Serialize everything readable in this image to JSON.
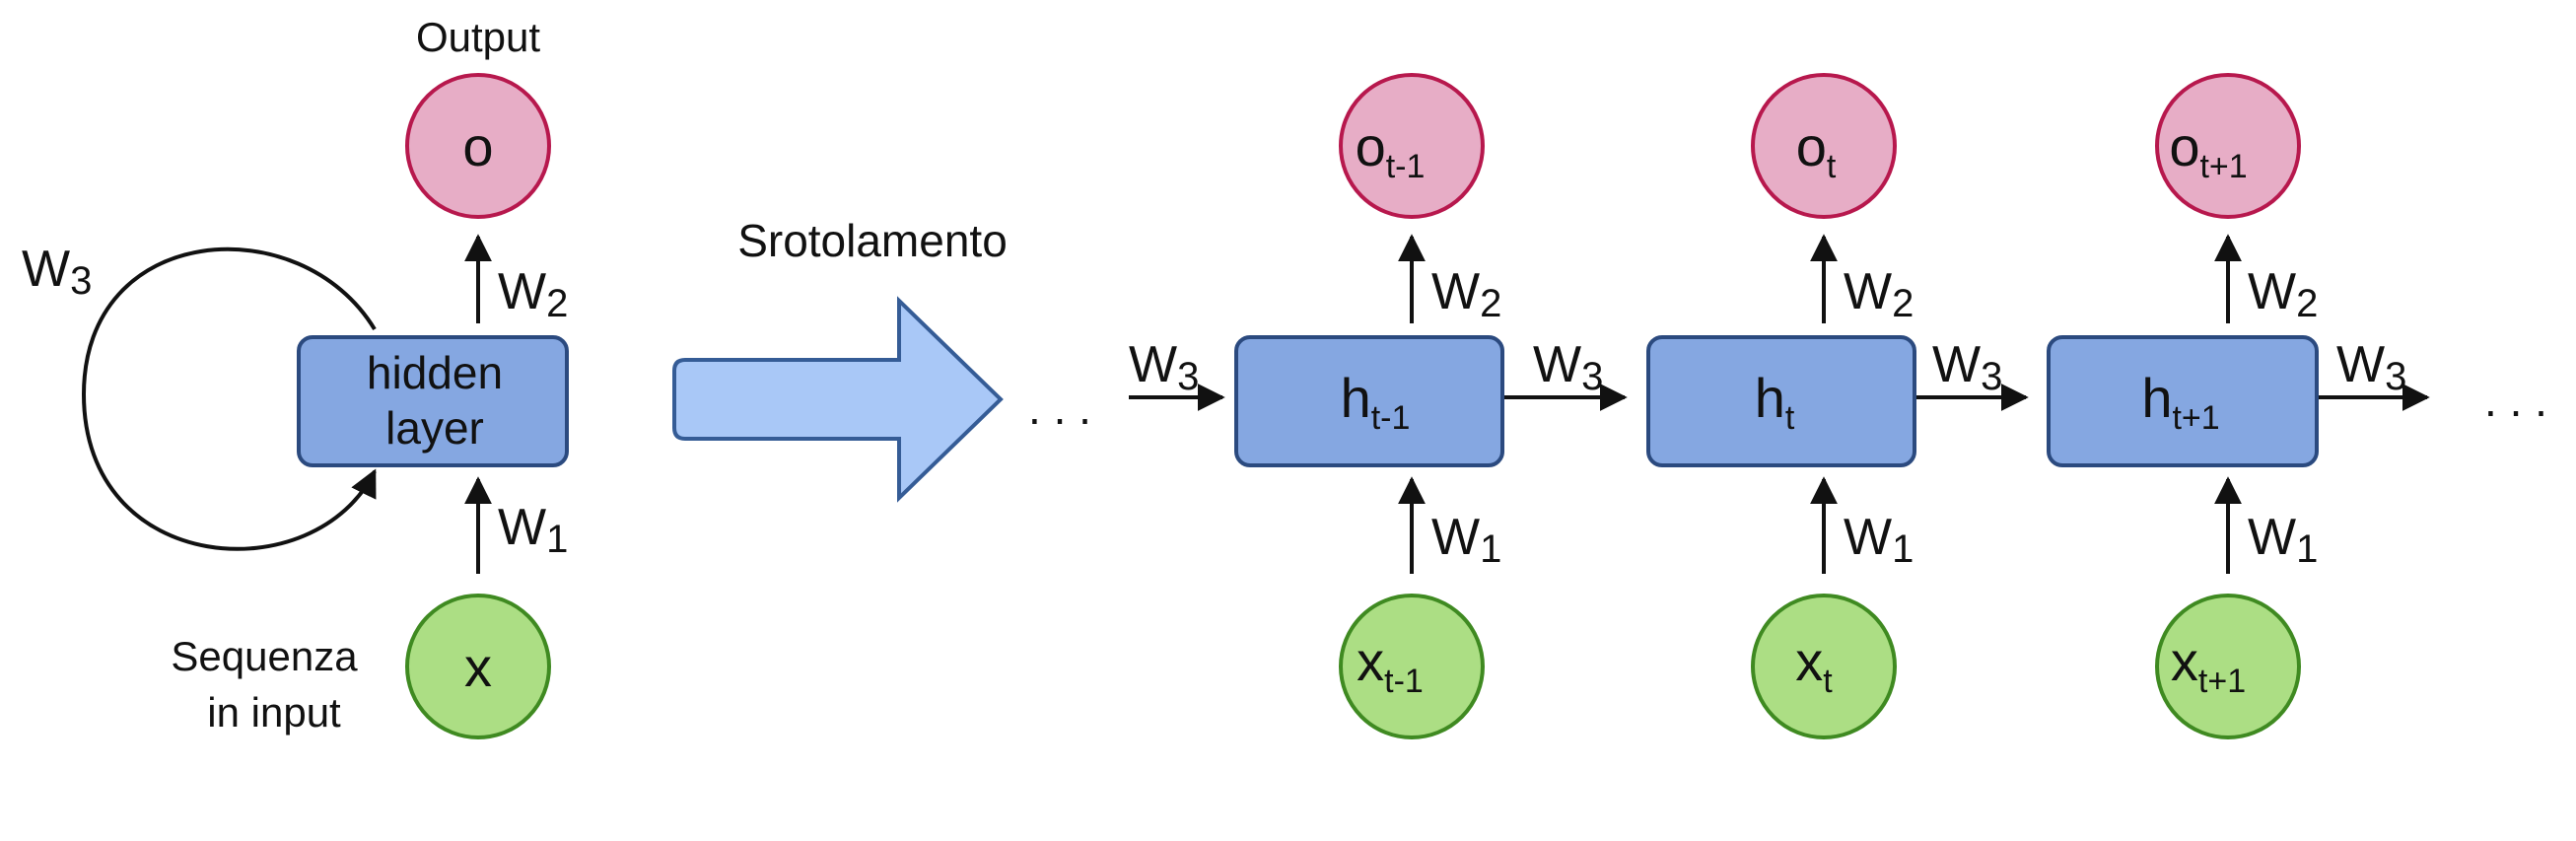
{
  "colors": {
    "output_fill": "#e7adc6",
    "output_stroke": "#b7184d",
    "input_fill": "#acde84",
    "input_stroke": "#3f8a21",
    "hidden_fill": "#85a7e1",
    "hidden_stroke": "#2b4a7f",
    "unroll_arrow_fill": "#a9c8f7"
  },
  "folded": {
    "output_title": "Output",
    "output_node": "o",
    "hidden_line1": "hidden",
    "hidden_line2": "layer",
    "input_node": "x",
    "input_title_line1": "Sequenza",
    "input_title_line2": "in input",
    "w1": {
      "base": "W",
      "sub": "1"
    },
    "w2": {
      "base": "W",
      "sub": "2"
    },
    "w3": {
      "base": "W",
      "sub": "3"
    }
  },
  "unroll_label": "Srotolamento",
  "ellipsis": ". . .",
  "unrolled": {
    "steps": [
      {
        "o_base": "o",
        "o_sub": "t-1",
        "h_base": "h",
        "h_sub": "t-1",
        "x_base": "x",
        "x_sub": "t-1"
      },
      {
        "o_base": "o",
        "o_sub": "t",
        "h_base": "h",
        "h_sub": "t",
        "x_base": "x",
        "x_sub": "t"
      },
      {
        "o_base": "o",
        "o_sub": "t+1",
        "h_base": "h",
        "h_sub": "t+1",
        "x_base": "x",
        "x_sub": "t+1"
      }
    ],
    "w1": {
      "base": "W",
      "sub": "1"
    },
    "w2": {
      "base": "W",
      "sub": "2"
    },
    "w3": {
      "base": "W",
      "sub": "3"
    }
  }
}
